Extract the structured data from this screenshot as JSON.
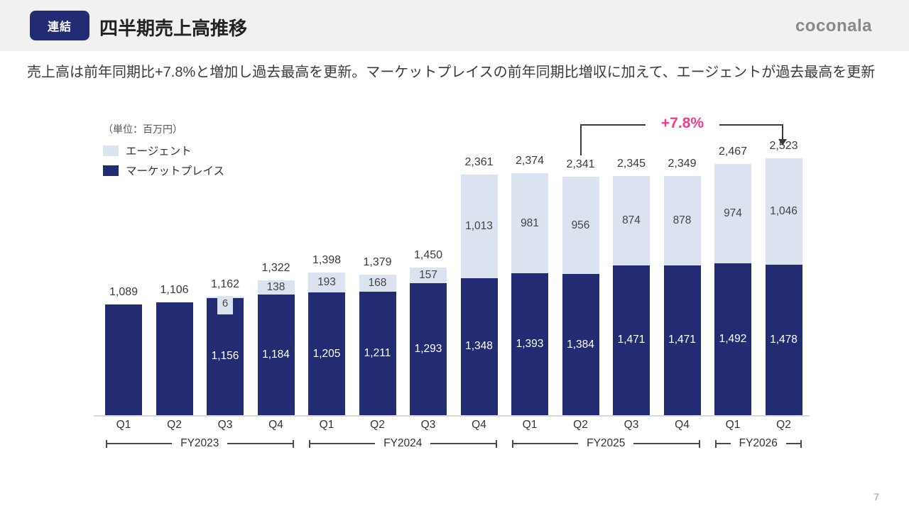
{
  "header": {
    "badge": "連結",
    "title": "四半期売上高推移",
    "logo": "coconala"
  },
  "subtitle": "売上高は前年同期比+7.8%と増加し過去最高を更新。マーケットプレイスの前年同期比増収に加えて、エージェントが過去最高を更新",
  "page": {
    "number": "7"
  },
  "colors": {
    "marketplace": "#232c72",
    "agent": "#dce3f0",
    "annotation_pink": "#ee3d8f",
    "header_bg": "#f1f1f1"
  },
  "chart_data": {
    "type": "bar",
    "stacked": true,
    "unit_label": "（単位：百万円）",
    "legend_position": "top-left",
    "grid": false,
    "ylim": [
      0,
      2523
    ],
    "legend": [
      {
        "name": "エージェント",
        "color": "#dce3f0"
      },
      {
        "name": "マーケットプレイス",
        "color": "#232c72"
      }
    ],
    "categories": [
      "Q1",
      "Q2",
      "Q3",
      "Q4",
      "Q1",
      "Q2",
      "Q3",
      "Q4",
      "Q1",
      "Q2",
      "Q3",
      "Q4",
      "Q1",
      "Q2"
    ],
    "groups": [
      {
        "label": "FY2023",
        "span": 4
      },
      {
        "label": "FY2024",
        "span": 4
      },
      {
        "label": "FY2025",
        "span": 4
      },
      {
        "label": "FY2026",
        "span": 2
      }
    ],
    "series": [
      {
        "name": "マーケットプレイス",
        "color": "#232c72",
        "values": [
          1089,
          1106,
          1156,
          1184,
          1205,
          1211,
          1293,
          1348,
          1393,
          1384,
          1471,
          1471,
          1492,
          1478
        ],
        "labels": [
          null,
          null,
          "1,156",
          "1,184",
          "1,205",
          "1,211",
          "1,293",
          "1,348",
          "1,393",
          "1,384",
          "1,471",
          "1,471",
          "1,492",
          "1,478"
        ]
      },
      {
        "name": "エージェント",
        "color": "#dce3f0",
        "values": [
          0,
          0,
          6,
          138,
          193,
          168,
          157,
          1013,
          981,
          956,
          874,
          878,
          974,
          1046
        ],
        "labels": [
          null,
          null,
          "6",
          "138",
          "193",
          "168",
          "157",
          "1,013",
          "981",
          "956",
          "874",
          "878",
          "974",
          "1,046"
        ]
      }
    ],
    "totals": [
      "1,089",
      "1,106",
      "1,162",
      "1,322",
      "1,398",
      "1,379",
      "1,450",
      "2,361",
      "2,374",
      "2,341",
      "2,345",
      "2,349",
      "2,467",
      "2,523"
    ],
    "annotation": {
      "text": "+7.8%",
      "color": "#ee3d8f",
      "from_quarter_index": 9,
      "to_quarter_index": 13
    }
  }
}
